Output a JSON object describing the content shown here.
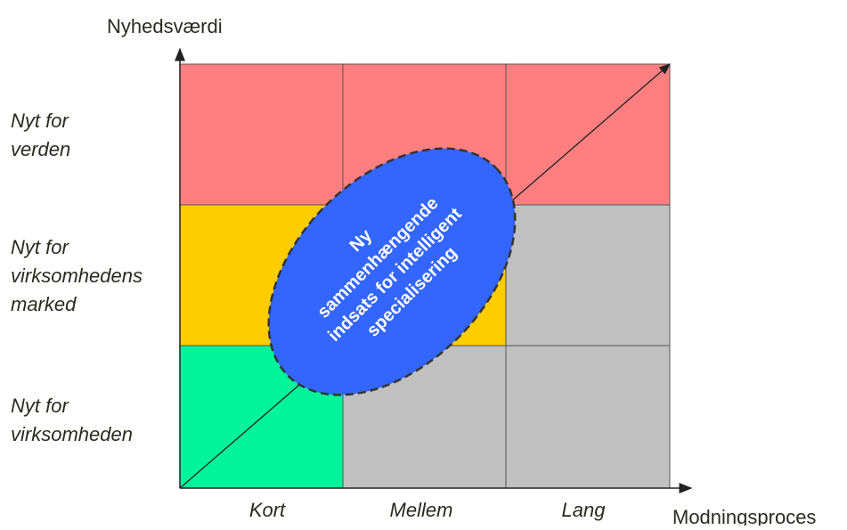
{
  "y_axis_label": "Nyhedsværdi",
  "x_axis_label": "Modningsproces",
  "rows": [
    {
      "lines": [
        "Nyt for",
        "verden"
      ]
    },
    {
      "lines": [
        "Nyt for",
        "virksomhedens",
        "marked"
      ]
    },
    {
      "lines": [
        "Nyt for",
        "virksomheden"
      ]
    }
  ],
  "columns": [
    "Kort",
    "Mellem",
    "Lang"
  ],
  "ellipse_text": [
    "Ny",
    "sammenhængende",
    "indsats for intelligent",
    "specialisering"
  ]
}
